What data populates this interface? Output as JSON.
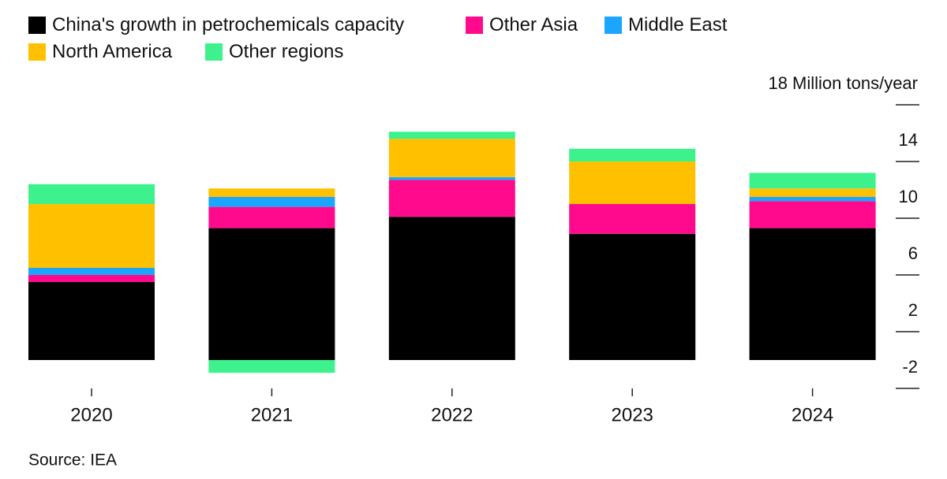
{
  "chart_data": {
    "type": "stacked-bar",
    "categories": [
      "2020",
      "2021",
      "2022",
      "2023",
      "2024"
    ],
    "series": [
      {
        "name": "China's growth in petrochemicals capacity",
        "color": "#000000",
        "values": [
          5.5,
          9.3,
          10.1,
          8.9,
          9.3
        ]
      },
      {
        "name": "Other Asia",
        "color": "#ff0a8c",
        "values": [
          0.5,
          1.5,
          2.6,
          2.1,
          1.9
        ]
      },
      {
        "name": "Middle East",
        "color": "#1aa5ff",
        "values": [
          0.5,
          0.7,
          0.2,
          0,
          0.3
        ]
      },
      {
        "name": "North America",
        "color": "#ffc000",
        "values": [
          4.5,
          0.6,
          2.7,
          3.0,
          0.6
        ]
      },
      {
        "name": "Other regions",
        "color": "#3df28d",
        "values": [
          1.4,
          -0.9,
          0.5,
          0.9,
          1.1
        ]
      }
    ],
    "ylim": [
      -2,
      18
    ],
    "yticks": [
      -2,
      2,
      6,
      10,
      14,
      {
        "value": 18,
        "label": "18 Million tons/year"
      }
    ],
    "source": "Source: IEA"
  }
}
